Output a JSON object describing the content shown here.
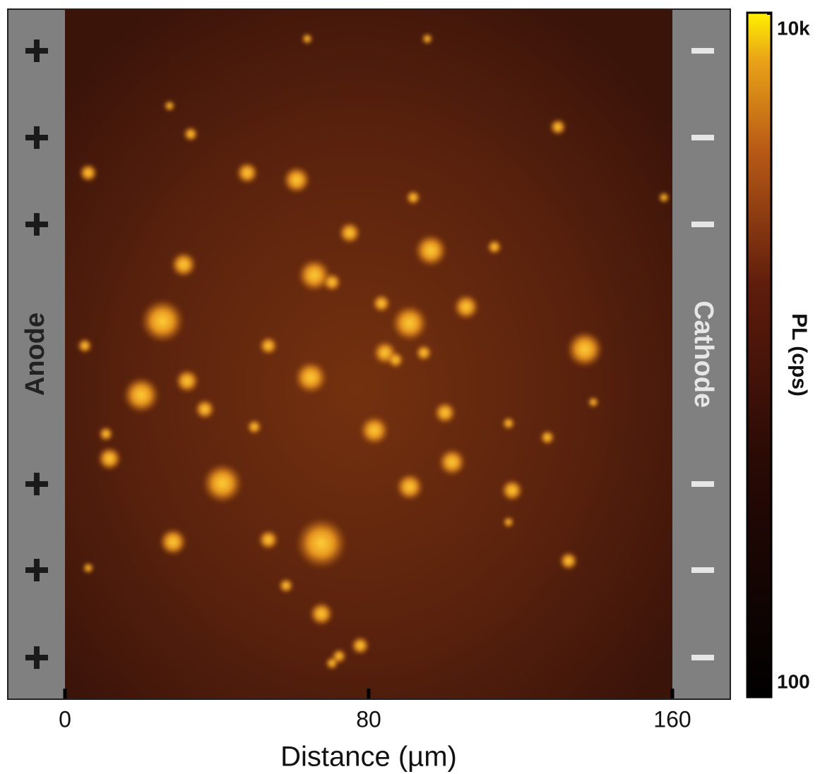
{
  "chart_data": {
    "type": "image",
    "x_label": "Distance (µm)",
    "xlim": [
      0,
      160
    ],
    "xticks": [
      0,
      80,
      160
    ],
    "left_label": "Anode",
    "right_label": "Cathode",
    "colorbar": {
      "label": "PL (cps)",
      "scale": "log",
      "lim": [
        100,
        10000
      ],
      "ticks": [
        100,
        {
          "value": 10000,
          "label": "10k"
        }
      ]
    }
  }
}
